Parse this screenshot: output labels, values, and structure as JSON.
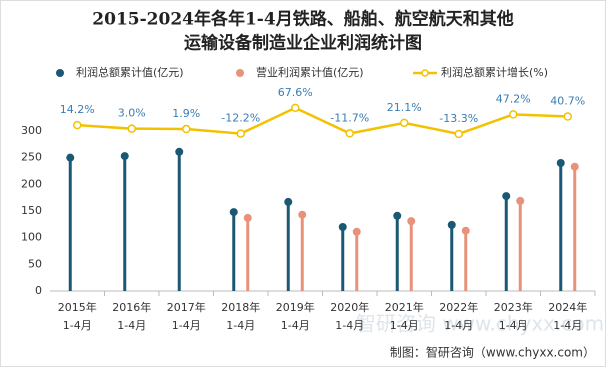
{
  "chart_data": {
    "type": "lollipop",
    "title": [
      "2015-2024年各年1-4月铁路、船舶、航空航天和其他",
      "运输设备制造业企业利润统计图"
    ],
    "categories": [
      [
        "2015年",
        "1-4月"
      ],
      [
        "2016年",
        "1-4月"
      ],
      [
        "2017年",
        "1-4月"
      ],
      [
        "2018年",
        "1-4月"
      ],
      [
        "2019年",
        "1-4月"
      ],
      [
        "2020年",
        "1-4月"
      ],
      [
        "2021年",
        "1-4月"
      ],
      [
        "2022年",
        "1-4月"
      ],
      [
        "2023年",
        "1-4月"
      ],
      [
        "2024年",
        "1-4月"
      ]
    ],
    "series": [
      {
        "name": "利润总额累计值(亿元)",
        "color": "#1b5873",
        "values": [
          250,
          253,
          261,
          148,
          167,
          120,
          141,
          124,
          178,
          240
        ]
      },
      {
        "name": "营业利润累计值(亿元)",
        "color": "#e8927c",
        "values": [
          null,
          null,
          null,
          137,
          143,
          111,
          131,
          113,
          169,
          233
        ]
      },
      {
        "name": "利润总额累计增长(%)",
        "color": "#f2c200",
        "axis": "y2",
        "type": "line",
        "values": [
          14.2,
          3.0,
          1.9,
          -12.2,
          67.6,
          -11.7,
          21.1,
          -13.3,
          47.2,
          40.7
        ],
        "value_labels": [
          "14.2%",
          "3.0%",
          "1.9%",
          "-12.2%",
          "67.6%",
          "-11.7%",
          "21.1%",
          "-13.3%",
          "47.2%",
          "40.7%"
        ]
      }
    ],
    "ylim": [
      0,
      360
    ],
    "yticks": [
      0,
      50,
      100,
      150,
      200,
      250,
      300
    ],
    "y2lim": [
      -500,
      95
    ],
    "source": "制图：智研咨询（www.chyxx.com）",
    "watermark": "智研咨询 www.chyxx.com"
  }
}
